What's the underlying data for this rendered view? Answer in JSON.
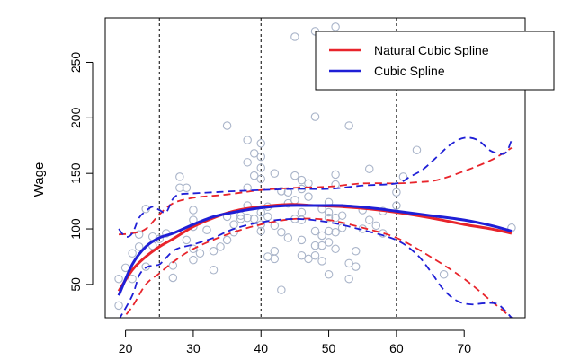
{
  "chart_data": {
    "type": "line",
    "title": "",
    "xlabel": "",
    "ylabel": "Wage",
    "xlim": [
      17,
      79
    ],
    "ylim": [
      20,
      290
    ],
    "x_ticks": [
      20,
      30,
      40,
      50,
      60,
      70
    ],
    "y_ticks": [
      50,
      100,
      150,
      200,
      250
    ],
    "knots": [
      25,
      40,
      60
    ],
    "colors": {
      "natural": "#e8242b",
      "cubic": "#1f1fd6",
      "points": "#a9b4c9"
    },
    "legend": {
      "position": "top-right",
      "entries": [
        {
          "label": "Natural Cubic Spline",
          "color": "#e8242b"
        },
        {
          "label": "Cubic Spline",
          "color": "#1f1fd6"
        }
      ]
    },
    "points": [
      [
        19,
        31
      ],
      [
        19,
        55
      ],
      [
        20,
        65
      ],
      [
        21,
        55
      ],
      [
        21,
        78
      ],
      [
        22,
        84
      ],
      [
        22,
        95
      ],
      [
        23,
        66
      ],
      [
        23,
        118
      ],
      [
        24,
        85
      ],
      [
        24,
        93
      ],
      [
        25,
        91
      ],
      [
        26,
        96
      ],
      [
        27,
        56
      ],
      [
        27,
        67
      ],
      [
        28,
        147
      ],
      [
        28,
        137
      ],
      [
        29,
        137
      ],
      [
        29,
        90
      ],
      [
        30,
        117
      ],
      [
        30,
        108
      ],
      [
        30,
        102
      ],
      [
        30,
        82
      ],
      [
        30,
        72
      ],
      [
        31,
        78
      ],
      [
        32,
        99
      ],
      [
        33,
        63
      ],
      [
        33,
        80
      ],
      [
        34,
        84
      ],
      [
        35,
        90
      ],
      [
        35,
        111
      ],
      [
        35,
        193
      ],
      [
        36,
        97
      ],
      [
        36,
        104
      ],
      [
        37,
        109
      ],
      [
        37,
        112
      ],
      [
        38,
        180
      ],
      [
        38,
        160
      ],
      [
        38,
        110
      ],
      [
        38,
        137
      ],
      [
        38,
        121
      ],
      [
        39,
        168
      ],
      [
        39,
        148
      ],
      [
        39,
        109
      ],
      [
        40,
        177
      ],
      [
        40,
        165
      ],
      [
        40,
        155
      ],
      [
        40,
        145
      ],
      [
        40,
        115
      ],
      [
        40,
        104
      ],
      [
        40,
        98
      ],
      [
        41,
        75
      ],
      [
        41,
        111
      ],
      [
        41,
        120
      ],
      [
        42,
        80
      ],
      [
        42,
        73
      ],
      [
        42,
        150
      ],
      [
        42,
        103
      ],
      [
        43,
        45
      ],
      [
        43,
        134
      ],
      [
        43,
        97
      ],
      [
        44,
        92
      ],
      [
        44,
        123
      ],
      [
        44,
        133
      ],
      [
        45,
        273
      ],
      [
        45,
        109
      ],
      [
        45,
        126
      ],
      [
        45,
        148
      ],
      [
        46,
        76
      ],
      [
        46,
        90
      ],
      [
        46,
        108
      ],
      [
        46,
        115
      ],
      [
        46,
        136
      ],
      [
        46,
        144
      ],
      [
        47,
        73
      ],
      [
        47,
        129
      ],
      [
        47,
        141
      ],
      [
        48,
        76
      ],
      [
        48,
        85
      ],
      [
        48,
        98
      ],
      [
        48,
        278
      ],
      [
        48,
        201
      ],
      [
        49,
        118
      ],
      [
        49,
        85
      ],
      [
        49,
        71
      ],
      [
        49,
        94
      ],
      [
        50,
        115
      ],
      [
        50,
        124
      ],
      [
        50,
        110
      ],
      [
        50,
        98
      ],
      [
        50,
        88
      ],
      [
        50,
        59
      ],
      [
        51,
        282
      ],
      [
        51,
        140
      ],
      [
        51,
        149
      ],
      [
        51,
        110
      ],
      [
        51,
        97
      ],
      [
        51,
        82
      ],
      [
        52,
        112
      ],
      [
        52,
        101
      ],
      [
        53,
        193
      ],
      [
        53,
        69
      ],
      [
        53,
        55
      ],
      [
        54,
        66
      ],
      [
        54,
        80
      ],
      [
        55,
        100
      ],
      [
        55,
        117
      ],
      [
        56,
        154
      ],
      [
        56,
        108
      ],
      [
        57,
        103
      ],
      [
        58,
        116
      ],
      [
        58,
        96
      ],
      [
        60,
        133
      ],
      [
        60,
        121
      ],
      [
        61,
        147
      ],
      [
        63,
        171
      ],
      [
        67,
        59
      ],
      [
        77,
        101
      ]
    ],
    "series": [
      {
        "name": "Natural Cubic Spline",
        "style": "solid",
        "x": [
          19,
          21,
          23,
          25,
          27,
          30,
          33,
          36,
          40,
          44,
          48,
          52,
          56,
          60,
          65,
          70,
          74,
          77
        ],
        "y": [
          44,
          63,
          75,
          84,
          91,
          102,
          110,
          116,
          120,
          122,
          121,
          120,
          118,
          115,
          110,
          104,
          100,
          96
        ]
      },
      {
        "name": "Natural Cubic Spline upper",
        "style": "dashed",
        "x": [
          19,
          21,
          23,
          25,
          27,
          30,
          35,
          40,
          45,
          50,
          55,
          60,
          63,
          66,
          70,
          74,
          77
        ],
        "y": [
          95,
          96,
          100,
          113,
          123,
          128,
          131,
          135,
          137,
          138,
          141,
          141,
          142,
          144,
          152,
          162,
          173
        ]
      },
      {
        "name": "Natural Cubic Spline lower",
        "style": "dashed",
        "x": [
          19,
          21,
          23,
          25,
          27,
          30,
          35,
          40,
          45,
          50,
          55,
          60,
          65,
          70,
          74,
          77
        ],
        "y": [
          15,
          30,
          50,
          60,
          70,
          82,
          95,
          104,
          109,
          108,
          101,
          92,
          75,
          55,
          35,
          20
        ]
      },
      {
        "name": "Cubic Spline",
        "style": "solid",
        "x": [
          19,
          21,
          23,
          25,
          27,
          30,
          33,
          36,
          40,
          44,
          48,
          52,
          56,
          60,
          65,
          70,
          74,
          77
        ],
        "y": [
          40,
          68,
          84,
          92,
          96,
          104,
          111,
          115,
          119,
          121,
          121,
          121,
          119,
          116,
          112,
          108,
          103,
          98
        ]
      },
      {
        "name": "Cubic Spline upper",
        "style": "dashed",
        "x": [
          19,
          20,
          21,
          22,
          23,
          24,
          25,
          26,
          27,
          28,
          30,
          33,
          36,
          40,
          45,
          50,
          55,
          60,
          62,
          64,
          66,
          68,
          70,
          72,
          74,
          76,
          77
        ],
        "y": [
          100,
          93,
          96,
          110,
          116,
          120,
          117,
          115,
          127,
          131,
          132,
          133,
          134,
          135,
          136,
          136,
          139,
          141,
          147,
          154,
          165,
          176,
          182,
          180,
          170,
          168,
          180
        ]
      },
      {
        "name": "Cubic Spline lower",
        "style": "dashed",
        "x": [
          19,
          21,
          22,
          23,
          24,
          25,
          26,
          27,
          28,
          30,
          33,
          36,
          40,
          45,
          50,
          55,
          60,
          63,
          65,
          67,
          69,
          71,
          73,
          75,
          77
        ],
        "y": [
          18,
          40,
          58,
          65,
          67,
          68,
          74,
          80,
          83,
          86,
          92,
          100,
          106,
          109,
          106,
          99,
          90,
          77,
          62,
          45,
          35,
          32,
          33,
          32,
          20
        ]
      }
    ]
  }
}
